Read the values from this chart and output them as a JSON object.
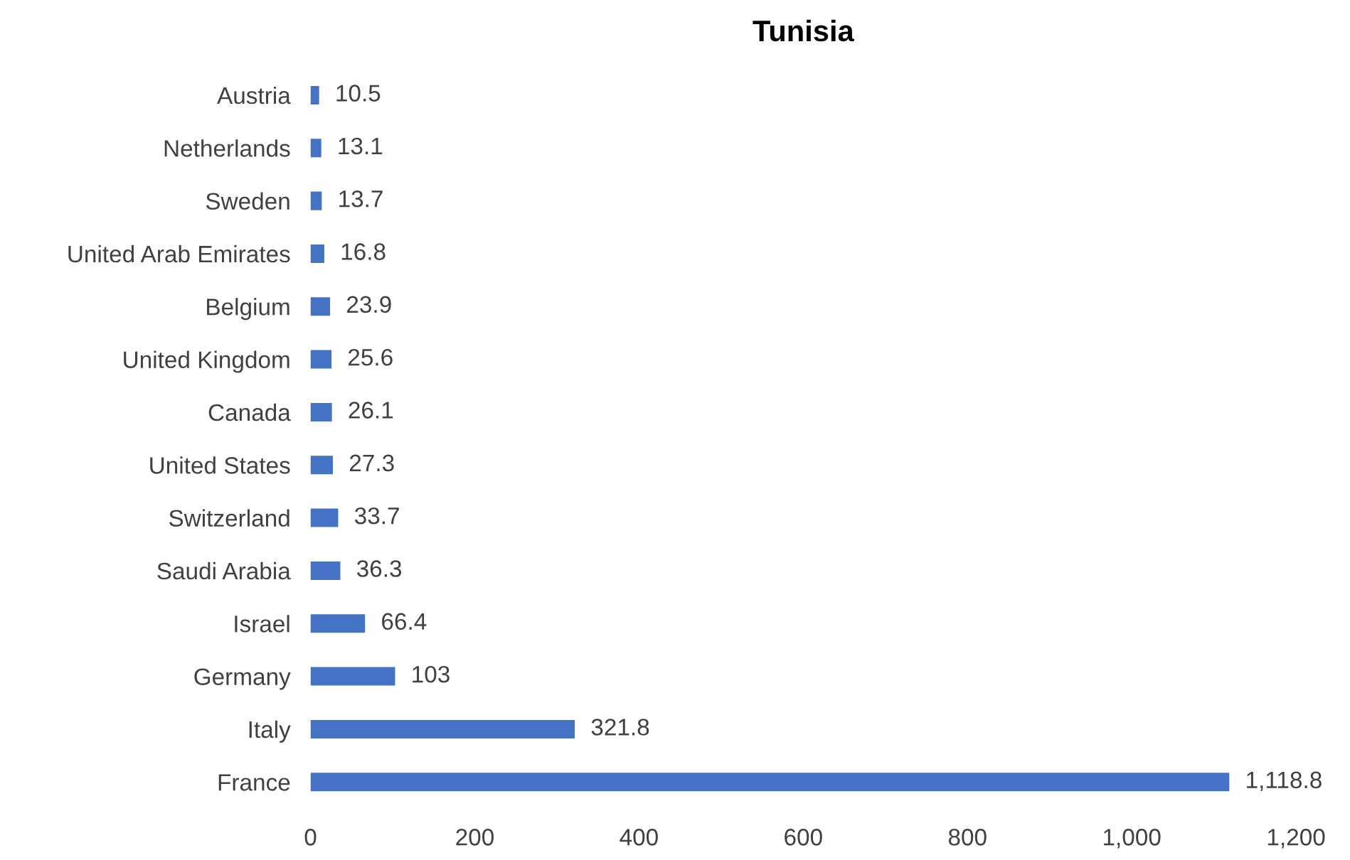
{
  "chart_data": {
    "type": "bar",
    "orientation": "horizontal",
    "title": "Tunisia",
    "categories": [
      "Austria",
      "Netherlands",
      "Sweden",
      "United Arab Emirates",
      "Belgium",
      "United Kingdom",
      "Canada",
      "United States",
      "Switzerland",
      "Saudi Arabia",
      "Israel",
      "Germany",
      "Italy",
      "France"
    ],
    "values": [
      10.5,
      13.1,
      13.7,
      16.8,
      23.9,
      25.6,
      26.1,
      27.3,
      33.7,
      36.3,
      66.4,
      103,
      321.8,
      1118.8
    ],
    "value_labels": [
      "10.5",
      "13.1",
      "13.7",
      "16.8",
      "23.9",
      "25.6",
      "26.1",
      "27.3",
      "33.7",
      "36.3",
      "66.4",
      "103",
      "321.8",
      "1,118.8"
    ],
    "color": "#4472c4",
    "xlim": [
      0,
      1200
    ],
    "xticks": [
      0,
      200,
      400,
      600,
      800,
      {
        "value": 1000,
        "label": "1,000"
      },
      {
        "value": 1200,
        "label": "1,200"
      }
    ],
    "grid": false,
    "legend": false
  }
}
